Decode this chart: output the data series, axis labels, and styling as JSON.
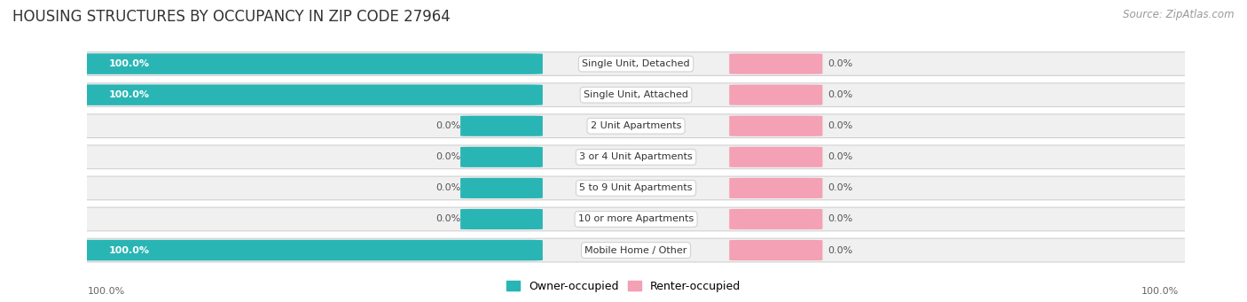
{
  "title": "HOUSING STRUCTURES BY OCCUPANCY IN ZIP CODE 27964",
  "source": "Source: ZipAtlas.com",
  "categories": [
    "Single Unit, Detached",
    "Single Unit, Attached",
    "2 Unit Apartments",
    "3 or 4 Unit Apartments",
    "5 to 9 Unit Apartments",
    "10 or more Apartments",
    "Mobile Home / Other"
  ],
  "owner_values": [
    100.0,
    100.0,
    0.0,
    0.0,
    0.0,
    0.0,
    100.0
  ],
  "renter_values": [
    0.0,
    0.0,
    0.0,
    0.0,
    0.0,
    0.0,
    0.0
  ],
  "owner_color": "#2ab5b5",
  "renter_color": "#f4a0b5",
  "title_fontsize": 12,
  "source_fontsize": 8.5,
  "label_fontsize": 8,
  "value_fontsize": 8,
  "legend_fontsize": 9,
  "figsize": [
    14.06,
    3.41
  ],
  "dpi": 100
}
